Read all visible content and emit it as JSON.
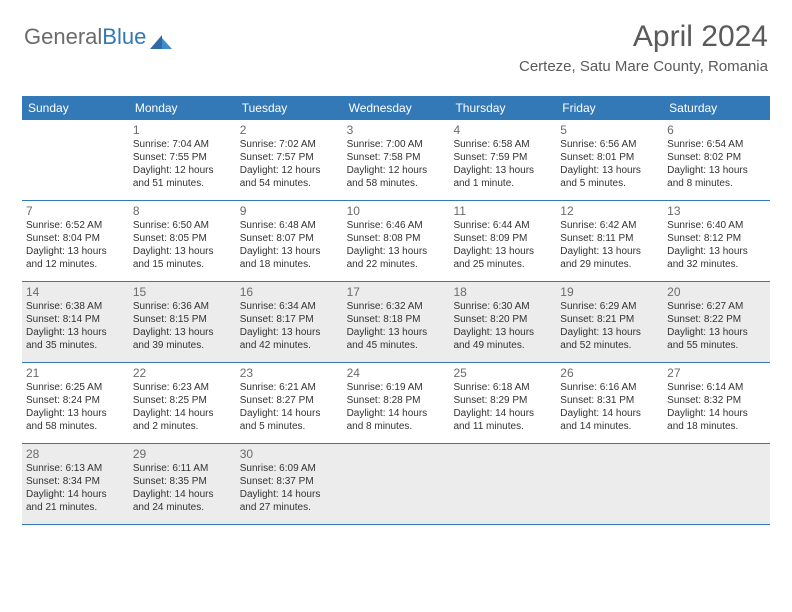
{
  "logo": {
    "part1": "General",
    "part2": "Blue"
  },
  "header": {
    "month": "April 2024",
    "location": "Certeze, Satu Mare County, Romania"
  },
  "colors": {
    "brand": "#3379b7",
    "text_muted": "#6b6b6b",
    "text": "#333333",
    "shade": "#ececec",
    "bg": "#ffffff"
  },
  "day_names": [
    "Sunday",
    "Monday",
    "Tuesday",
    "Wednesday",
    "Thursday",
    "Friday",
    "Saturday"
  ],
  "weeks": [
    [
      null,
      {
        "n": "1",
        "sr": "Sunrise: 7:04 AM",
        "ss": "Sunset: 7:55 PM",
        "dl": "Daylight: 12 hours and 51 minutes."
      },
      {
        "n": "2",
        "sr": "Sunrise: 7:02 AM",
        "ss": "Sunset: 7:57 PM",
        "dl": "Daylight: 12 hours and 54 minutes."
      },
      {
        "n": "3",
        "sr": "Sunrise: 7:00 AM",
        "ss": "Sunset: 7:58 PM",
        "dl": "Daylight: 12 hours and 58 minutes."
      },
      {
        "n": "4",
        "sr": "Sunrise: 6:58 AM",
        "ss": "Sunset: 7:59 PM",
        "dl": "Daylight: 13 hours and 1 minute."
      },
      {
        "n": "5",
        "sr": "Sunrise: 6:56 AM",
        "ss": "Sunset: 8:01 PM",
        "dl": "Daylight: 13 hours and 5 minutes."
      },
      {
        "n": "6",
        "sr": "Sunrise: 6:54 AM",
        "ss": "Sunset: 8:02 PM",
        "dl": "Daylight: 13 hours and 8 minutes."
      }
    ],
    [
      {
        "n": "7",
        "sr": "Sunrise: 6:52 AM",
        "ss": "Sunset: 8:04 PM",
        "dl": "Daylight: 13 hours and 12 minutes."
      },
      {
        "n": "8",
        "sr": "Sunrise: 6:50 AM",
        "ss": "Sunset: 8:05 PM",
        "dl": "Daylight: 13 hours and 15 minutes."
      },
      {
        "n": "9",
        "sr": "Sunrise: 6:48 AM",
        "ss": "Sunset: 8:07 PM",
        "dl": "Daylight: 13 hours and 18 minutes."
      },
      {
        "n": "10",
        "sr": "Sunrise: 6:46 AM",
        "ss": "Sunset: 8:08 PM",
        "dl": "Daylight: 13 hours and 22 minutes."
      },
      {
        "n": "11",
        "sr": "Sunrise: 6:44 AM",
        "ss": "Sunset: 8:09 PM",
        "dl": "Daylight: 13 hours and 25 minutes."
      },
      {
        "n": "12",
        "sr": "Sunrise: 6:42 AM",
        "ss": "Sunset: 8:11 PM",
        "dl": "Daylight: 13 hours and 29 minutes."
      },
      {
        "n": "13",
        "sr": "Sunrise: 6:40 AM",
        "ss": "Sunset: 8:12 PM",
        "dl": "Daylight: 13 hours and 32 minutes."
      }
    ],
    [
      {
        "n": "14",
        "sr": "Sunrise: 6:38 AM",
        "ss": "Sunset: 8:14 PM",
        "dl": "Daylight: 13 hours and 35 minutes."
      },
      {
        "n": "15",
        "sr": "Sunrise: 6:36 AM",
        "ss": "Sunset: 8:15 PM",
        "dl": "Daylight: 13 hours and 39 minutes."
      },
      {
        "n": "16",
        "sr": "Sunrise: 6:34 AM",
        "ss": "Sunset: 8:17 PM",
        "dl": "Daylight: 13 hours and 42 minutes."
      },
      {
        "n": "17",
        "sr": "Sunrise: 6:32 AM",
        "ss": "Sunset: 8:18 PM",
        "dl": "Daylight: 13 hours and 45 minutes."
      },
      {
        "n": "18",
        "sr": "Sunrise: 6:30 AM",
        "ss": "Sunset: 8:20 PM",
        "dl": "Daylight: 13 hours and 49 minutes."
      },
      {
        "n": "19",
        "sr": "Sunrise: 6:29 AM",
        "ss": "Sunset: 8:21 PM",
        "dl": "Daylight: 13 hours and 52 minutes."
      },
      {
        "n": "20",
        "sr": "Sunrise: 6:27 AM",
        "ss": "Sunset: 8:22 PM",
        "dl": "Daylight: 13 hours and 55 minutes."
      }
    ],
    [
      {
        "n": "21",
        "sr": "Sunrise: 6:25 AM",
        "ss": "Sunset: 8:24 PM",
        "dl": "Daylight: 13 hours and 58 minutes."
      },
      {
        "n": "22",
        "sr": "Sunrise: 6:23 AM",
        "ss": "Sunset: 8:25 PM",
        "dl": "Daylight: 14 hours and 2 minutes."
      },
      {
        "n": "23",
        "sr": "Sunrise: 6:21 AM",
        "ss": "Sunset: 8:27 PM",
        "dl": "Daylight: 14 hours and 5 minutes."
      },
      {
        "n": "24",
        "sr": "Sunrise: 6:19 AM",
        "ss": "Sunset: 8:28 PM",
        "dl": "Daylight: 14 hours and 8 minutes."
      },
      {
        "n": "25",
        "sr": "Sunrise: 6:18 AM",
        "ss": "Sunset: 8:29 PM",
        "dl": "Daylight: 14 hours and 11 minutes."
      },
      {
        "n": "26",
        "sr": "Sunrise: 6:16 AM",
        "ss": "Sunset: 8:31 PM",
        "dl": "Daylight: 14 hours and 14 minutes."
      },
      {
        "n": "27",
        "sr": "Sunrise: 6:14 AM",
        "ss": "Sunset: 8:32 PM",
        "dl": "Daylight: 14 hours and 18 minutes."
      }
    ],
    [
      {
        "n": "28",
        "sr": "Sunrise: 6:13 AM",
        "ss": "Sunset: 8:34 PM",
        "dl": "Daylight: 14 hours and 21 minutes."
      },
      {
        "n": "29",
        "sr": "Sunrise: 6:11 AM",
        "ss": "Sunset: 8:35 PM",
        "dl": "Daylight: 14 hours and 24 minutes."
      },
      {
        "n": "30",
        "sr": "Sunrise: 6:09 AM",
        "ss": "Sunset: 8:37 PM",
        "dl": "Daylight: 14 hours and 27 minutes."
      },
      null,
      null,
      null,
      null
    ]
  ],
  "shaded_rows": [
    2,
    4
  ]
}
